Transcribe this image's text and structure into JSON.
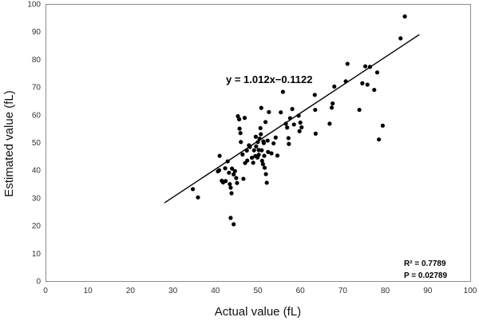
{
  "chart_data": {
    "type": "scatter",
    "xlabel": "Actual value (fL)",
    "ylabel": "Estimated value (fL)",
    "xlim": [
      0,
      100
    ],
    "ylim": [
      0,
      100
    ],
    "x_ticks": [
      "0",
      "10",
      "20",
      "30",
      "40",
      "50",
      "60",
      "70",
      "80",
      "90",
      "100"
    ],
    "y_ticks": [
      "0",
      "10",
      "20",
      "30",
      "40",
      "50",
      "60",
      "70",
      "80",
      "90",
      "100"
    ],
    "grid": false,
    "frame": true,
    "point_color": "#000000",
    "line_color": "#000000",
    "trendline": {
      "equation": "y = 1.012x−0.1122",
      "slope": 1.012,
      "intercept": -0.1122,
      "x_start": 28,
      "x_end": 88
    },
    "stats": {
      "r2": "R² = 0.7789",
      "p": "P = 0.02789"
    },
    "points": [
      [
        34.7,
        33.2
      ],
      [
        35.9,
        30.2
      ],
      [
        40.6,
        39.6
      ],
      [
        40.9,
        40.0
      ],
      [
        41.0,
        45.2
      ],
      [
        41.5,
        36.2
      ],
      [
        41.8,
        35.6
      ],
      [
        42.3,
        40.7
      ],
      [
        42.4,
        36.1
      ],
      [
        42.9,
        43.2
      ],
      [
        43.2,
        39.1
      ],
      [
        43.4,
        35.0
      ],
      [
        43.6,
        33.7
      ],
      [
        43.8,
        31.7
      ],
      [
        43.9,
        40.6
      ],
      [
        43.6,
        22.8
      ],
      [
        44.3,
        20.5
      ],
      [
        44.3,
        38.5
      ],
      [
        44.6,
        39.7
      ],
      [
        44.9,
        37.2
      ],
      [
        45.1,
        35.4
      ],
      [
        45.3,
        59.5
      ],
      [
        45.6,
        58.4
      ],
      [
        45.7,
        55.0
      ],
      [
        45.9,
        53.4
      ],
      [
        46.0,
        50.2
      ],
      [
        46.4,
        45.7
      ],
      [
        46.6,
        36.9
      ],
      [
        46.9,
        58.9
      ],
      [
        47.0,
        42.6
      ],
      [
        47.4,
        47.1
      ],
      [
        47.5,
        43.5
      ],
      [
        47.9,
        49.0
      ],
      [
        48.1,
        48.4
      ],
      [
        48.6,
        44.5
      ],
      [
        48.9,
        42.7
      ],
      [
        49.1,
        47.2
      ],
      [
        49.4,
        45.1
      ],
      [
        49.5,
        52.1
      ],
      [
        49.6,
        48.6
      ],
      [
        49.9,
        44.6
      ],
      [
        50.0,
        50.2
      ],
      [
        50.2,
        47.3
      ],
      [
        50.2,
        45.6
      ],
      [
        50.4,
        51.4
      ],
      [
        50.6,
        55.2
      ],
      [
        50.7,
        53.0
      ],
      [
        50.8,
        62.5
      ],
      [
        50.9,
        47.2
      ],
      [
        51.0,
        43.4
      ],
      [
        51.2,
        42.2
      ],
      [
        51.3,
        50.4
      ],
      [
        51.4,
        49.8
      ],
      [
        51.5,
        45.2
      ],
      [
        51.6,
        40.9
      ],
      [
        51.8,
        57.4
      ],
      [
        51.9,
        38.6
      ],
      [
        52.1,
        35.5
      ],
      [
        52.3,
        50.7
      ],
      [
        52.4,
        46.6
      ],
      [
        52.6,
        61.0
      ],
      [
        53.2,
        46.1
      ],
      [
        53.7,
        49.7
      ],
      [
        54.6,
        45.3
      ],
      [
        54.2,
        51.8
      ],
      [
        55.4,
        60.9
      ],
      [
        55.9,
        68.3
      ],
      [
        56.6,
        56.8
      ],
      [
        56.9,
        55.4
      ],
      [
        57.2,
        51.6
      ],
      [
        57.3,
        49.5
      ],
      [
        57.6,
        58.8
      ],
      [
        58.1,
        62.1
      ],
      [
        58.5,
        56.5
      ],
      [
        59.6,
        59.7
      ],
      [
        59.8,
        54.1
      ],
      [
        60.0,
        57.2
      ],
      [
        60.3,
        55.5
      ],
      [
        63.4,
        67.2
      ],
      [
        63.5,
        61.8
      ],
      [
        63.6,
        53.2
      ],
      [
        66.9,
        56.8
      ],
      [
        67.4,
        62.6
      ],
      [
        67.6,
        64.1
      ],
      [
        68.0,
        70.2
      ],
      [
        70.7,
        72.1
      ],
      [
        71.1,
        78.4
      ],
      [
        73.9,
        61.8
      ],
      [
        74.6,
        71.4
      ],
      [
        75.3,
        77.5
      ],
      [
        75.8,
        70.9
      ],
      [
        76.4,
        77.3
      ],
      [
        77.4,
        69.0
      ],
      [
        78.1,
        75.3
      ],
      [
        78.5,
        51.1
      ],
      [
        79.4,
        56.1
      ],
      [
        83.6,
        87.6
      ],
      [
        84.6,
        95.5
      ]
    ]
  }
}
